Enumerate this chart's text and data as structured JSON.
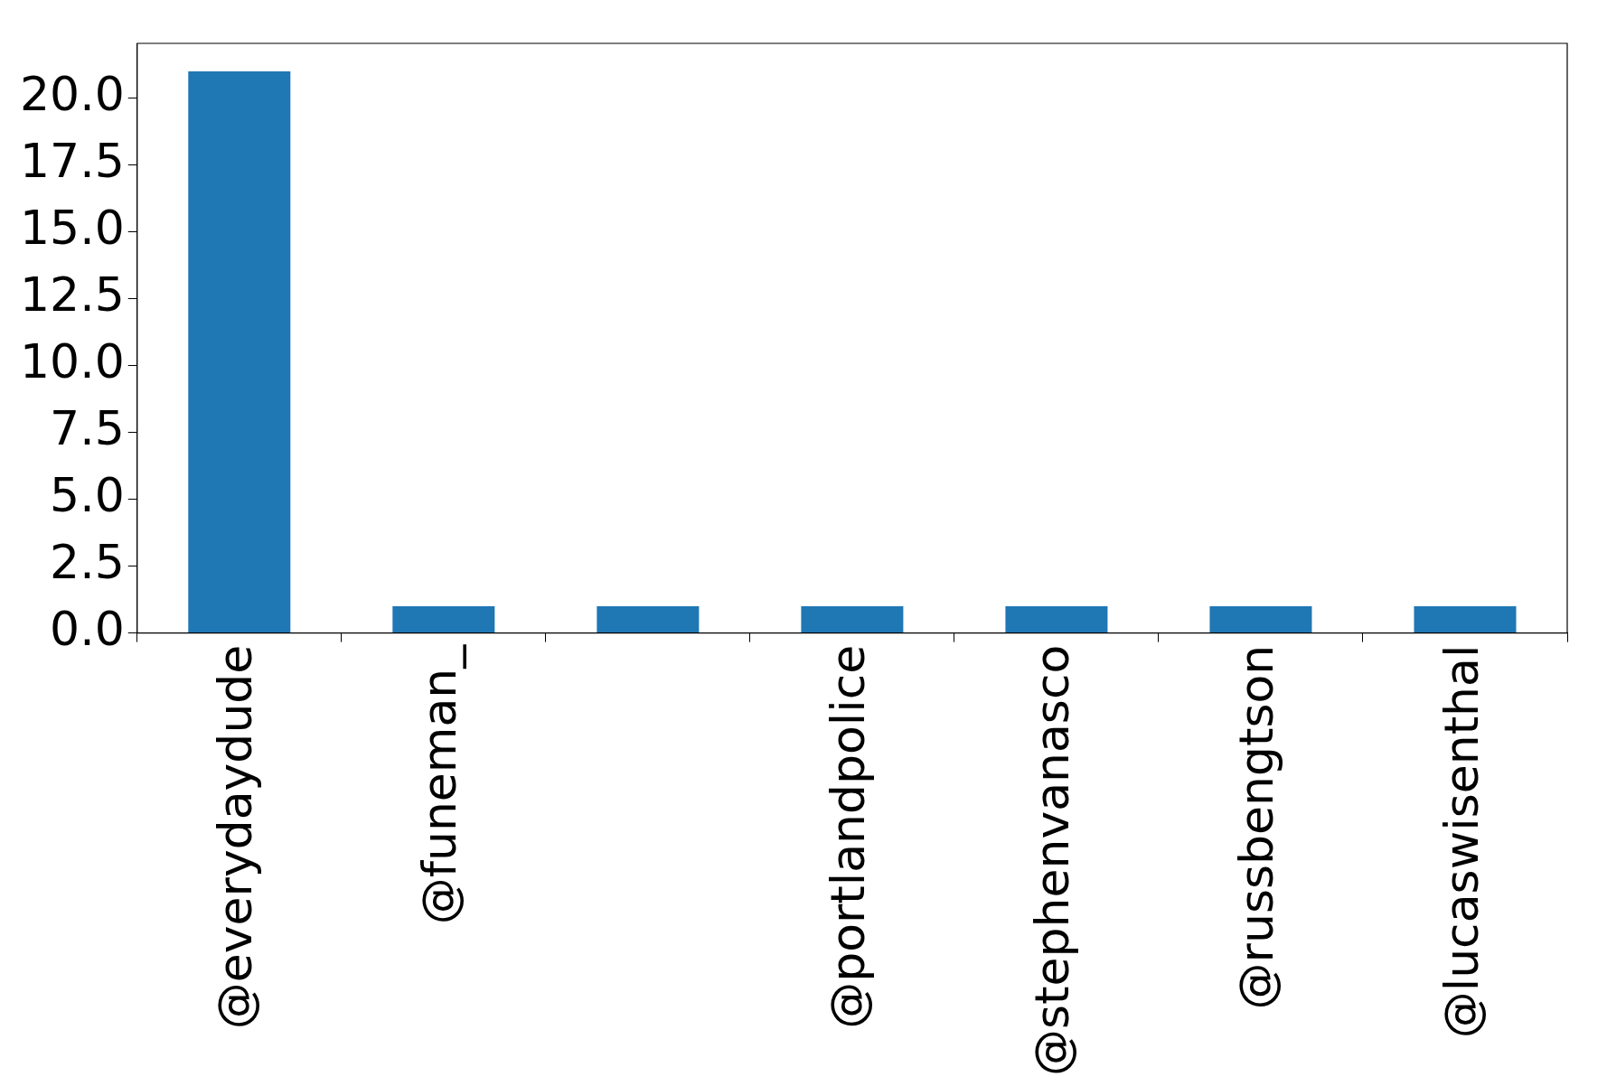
{
  "chart_data": {
    "type": "bar",
    "categories": [
      "@everydaydude",
      "@funeman_",
      null,
      "@portlandpolice",
      "@stephenvanasco",
      "@russbengtson",
      "@lucaswisenthal"
    ],
    "values": [
      21,
      1,
      1,
      1,
      1,
      1,
      1
    ],
    "color": "#1f77b4",
    "ylim": [
      0,
      22.05
    ],
    "yticks": [
      {
        "value": 0,
        "label": "0.0"
      },
      {
        "value": 2.5,
        "label": "2.5"
      },
      {
        "value": 5,
        "label": "5.0"
      },
      {
        "value": 7.5,
        "label": "7.5"
      },
      {
        "value": 10,
        "label": "10.0"
      },
      {
        "value": 12.5,
        "label": "12.5"
      },
      {
        "value": 15,
        "label": "15.0"
      },
      {
        "value": 17.5,
        "label": "17.5"
      },
      {
        "value": 20,
        "label": "20.0"
      }
    ],
    "grid": false,
    "legend": false
  }
}
